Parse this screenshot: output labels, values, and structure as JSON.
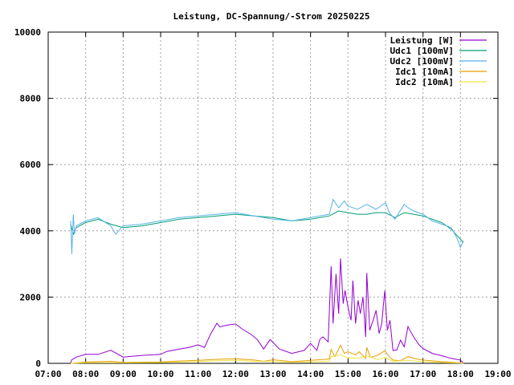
{
  "chart_data": {
    "type": "line",
    "title": "Leistung, DC-Spannung/-Strom 20250225",
    "xlabel": "",
    "ylabel": "",
    "xlim": [
      7,
      19
    ],
    "ylim": [
      0,
      10000
    ],
    "grid": true,
    "legend_position": "top-right",
    "x_ticks": [
      "07:00",
      "08:00",
      "09:00",
      "10:00",
      "11:00",
      "12:00",
      "13:00",
      "14:00",
      "15:00",
      "16:00",
      "17:00",
      "18:00",
      "19:00"
    ],
    "y_ticks": [
      "0",
      "2000",
      "4000",
      "6000",
      "8000",
      "10000"
    ],
    "series": [
      {
        "name": "Leistung [W]",
        "color": "#9400d3",
        "x": [
          7.6,
          7.62,
          7.75,
          8.0,
          8.33,
          8.67,
          9.0,
          9.5,
          10.0,
          10.17,
          10.5,
          10.75,
          11.0,
          11.17,
          11.33,
          11.5,
          11.58,
          11.75,
          12.0,
          12.17,
          12.42,
          12.58,
          12.75,
          12.92,
          13.0,
          13.17,
          13.5,
          13.83,
          14.0,
          14.17,
          14.25,
          14.33,
          14.47,
          14.55,
          14.6,
          14.68,
          14.75,
          14.8,
          14.87,
          14.92,
          15.0,
          15.08,
          15.13,
          15.2,
          15.27,
          15.33,
          15.4,
          15.47,
          15.5,
          15.58,
          15.67,
          15.75,
          15.83,
          15.9,
          15.98,
          16.05,
          16.12,
          16.2,
          16.3,
          16.4,
          16.5,
          16.6,
          16.65,
          16.75,
          16.9,
          17.0,
          17.25,
          17.5,
          17.75,
          18.0,
          18.08
        ],
        "y": [
          0,
          100,
          190,
          270,
          270,
          395,
          190,
          240,
          270,
          360,
          430,
          480,
          560,
          480,
          880,
          1210,
          1100,
          1150,
          1190,
          1040,
          870,
          720,
          430,
          720,
          630,
          430,
          300,
          390,
          600,
          390,
          730,
          800,
          650,
          2930,
          1200,
          2700,
          1500,
          3170,
          1800,
          2200,
          1700,
          1300,
          2500,
          1200,
          1900,
          1500,
          2000,
          800,
          2730,
          1000,
          1300,
          1600,
          900,
          1200,
          2200,
          1000,
          1300,
          390,
          400,
          700,
          500,
          1110,
          1000,
          800,
          550,
          450,
          300,
          230,
          150,
          100,
          0
        ]
      },
      {
        "name": "Udc1 [100mV]",
        "color": "#009e73",
        "x": [
          7.6,
          7.67,
          7.75,
          8.0,
          8.33,
          8.67,
          9.0,
          9.5,
          10.0,
          10.5,
          11.0,
          11.5,
          12.0,
          12.5,
          13.0,
          13.5,
          14.0,
          14.5,
          14.75,
          15.0,
          15.25,
          15.5,
          15.75,
          16.0,
          16.25,
          16.5,
          16.75,
          17.0,
          17.25,
          17.5,
          17.75,
          18.0,
          18.08
        ],
        "y": [
          4200,
          3900,
          4100,
          4250,
          4350,
          4200,
          4100,
          4150,
          4250,
          4350,
          4400,
          4450,
          4500,
          4450,
          4400,
          4300,
          4350,
          4450,
          4600,
          4550,
          4500,
          4500,
          4550,
          4550,
          4400,
          4550,
          4500,
          4450,
          4350,
          4250,
          4050,
          3750,
          3650
        ]
      },
      {
        "name": "Udc2 [100mV]",
        "color": "#56b4e9",
        "x": [
          7.6,
          7.63,
          7.67,
          7.7,
          7.75,
          8.0,
          8.33,
          8.67,
          8.8,
          9.0,
          9.5,
          10.0,
          10.5,
          11.0,
          11.5,
          12.0,
          12.5,
          13.0,
          13.5,
          14.0,
          14.5,
          14.6,
          14.75,
          14.9,
          15.0,
          15.25,
          15.5,
          15.75,
          16.0,
          16.1,
          16.25,
          16.5,
          16.6,
          16.75,
          17.0,
          17.25,
          17.5,
          17.75,
          17.9,
          18.0,
          18.08
        ],
        "y": [
          4300,
          3300,
          4500,
          3900,
          4150,
          4300,
          4400,
          4150,
          3900,
          4150,
          4200,
          4300,
          4400,
          4450,
          4500,
          4550,
          4450,
          4350,
          4300,
          4400,
          4500,
          4950,
          4700,
          4900,
          4750,
          4650,
          4800,
          4650,
          4850,
          4550,
          4350,
          4800,
          4700,
          4600,
          4500,
          4300,
          4200,
          4100,
          3800,
          3500,
          3700
        ]
      },
      {
        "name": "Idc1 [10mA]",
        "color": "#e69f00",
        "x": [
          7.6,
          8.0,
          8.67,
          9.0,
          10.0,
          10.5,
          11.0,
          11.5,
          12.0,
          12.5,
          12.75,
          13.0,
          13.5,
          14.0,
          14.5,
          14.55,
          14.65,
          14.8,
          14.9,
          15.0,
          15.2,
          15.3,
          15.47,
          15.5,
          15.6,
          15.8,
          15.98,
          16.1,
          16.2,
          16.4,
          16.6,
          16.8,
          17.0,
          17.5,
          18.0,
          18.08
        ],
        "y": [
          0,
          40,
          60,
          30,
          40,
          70,
          90,
          120,
          140,
          100,
          60,
          110,
          50,
          90,
          130,
          420,
          200,
          550,
          300,
          350,
          260,
          350,
          150,
          480,
          180,
          250,
          380,
          200,
          100,
          80,
          200,
          140,
          100,
          50,
          20,
          0
        ]
      },
      {
        "name": "Idc2 [10mA]",
        "color": "#f0e442",
        "x": [
          7.6,
          8.0,
          9.0,
          10.0,
          11.0,
          11.5,
          12.0,
          12.5,
          13.0,
          13.5,
          14.0,
          14.5,
          14.55,
          14.8,
          15.0,
          15.3,
          15.5,
          15.8,
          15.98,
          16.2,
          16.6,
          17.0,
          17.5,
          18.0,
          18.08
        ],
        "y": [
          0,
          20,
          20,
          25,
          50,
          80,
          90,
          60,
          50,
          30,
          40,
          60,
          200,
          260,
          160,
          160,
          220,
          110,
          180,
          60,
          90,
          50,
          25,
          10,
          0
        ]
      }
    ]
  }
}
